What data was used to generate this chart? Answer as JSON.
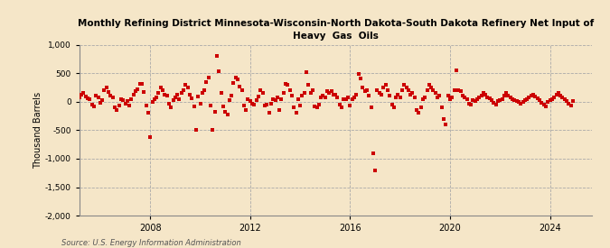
{
  "title": "Monthly Refining District Minnesota-Wisconsin-North Dakota-South Dakota Refinery Net Input of\nHeavy  Gas  Oils",
  "ylabel": "Thousand Barrels",
  "source": "Source: U.S. Energy Information Administration",
  "background_color": "#f5e6c8",
  "plot_bg_color": "#f5e6c8",
  "marker_color": "#cc0000",
  "marker": "s",
  "markersize": 2.5,
  "ylim": [
    -2000,
    1000
  ],
  "yticks": [
    -2000,
    -1500,
    -1000,
    -500,
    0,
    500,
    1000
  ],
  "ytick_labels": [
    "-2,000",
    "-1,500",
    "-1,000",
    "-500",
    "0",
    "500",
    "1,000"
  ],
  "grid_color": "#aaaaaa",
  "grid_style": "--",
  "data": [
    55,
    -30,
    80,
    120,
    150,
    90,
    60,
    40,
    -50,
    -80,
    110,
    70,
    -20,
    30,
    200,
    250,
    170,
    100,
    80,
    -100,
    -150,
    -60,
    40,
    20,
    -40,
    10,
    -60,
    50,
    130,
    190,
    220,
    310,
    310,
    170,
    -60,
    -200,
    -620,
    -10,
    50,
    80,
    160,
    250,
    200,
    130,
    100,
    -40,
    -100,
    30,
    80,
    120,
    40,
    160,
    200,
    300,
    250,
    120,
    60,
    -80,
    -490,
    90,
    -30,
    150,
    200,
    350,
    420,
    -70,
    -500,
    -180,
    810,
    540,
    150,
    -80,
    -170,
    -230,
    20,
    100,
    330,
    430,
    390,
    260,
    200,
    -60,
    -150,
    40,
    10,
    -40,
    -50,
    30,
    90,
    200,
    150,
    -70,
    -50,
    -200,
    -30,
    50,
    30,
    80,
    -150,
    40,
    150,
    320,
    300,
    200,
    100,
    -100,
    -200,
    50,
    -60,
    100,
    160,
    520,
    300,
    150,
    200,
    -80,
    -100,
    -50,
    70,
    110,
    80,
    180,
    150,
    180,
    130,
    120,
    80,
    -50,
    -100,
    40,
    50,
    80,
    -70,
    50,
    80,
    120,
    480,
    400,
    250,
    180,
    200,
    100,
    -100,
    -900,
    -1200,
    200,
    150,
    120,
    250,
    300,
    200,
    100,
    -50,
    -100,
    80,
    120,
    80,
    200,
    300,
    250,
    200,
    130,
    150,
    80,
    -150,
    -200,
    -100,
    50,
    80,
    200,
    300,
    250,
    200,
    150,
    80,
    100,
    -100,
    -300,
    -400,
    100,
    50,
    80,
    200,
    550,
    200,
    180,
    100,
    80,
    50,
    -30,
    -50,
    20,
    10,
    50,
    80,
    100,
    150,
    120,
    80,
    60,
    30,
    -20,
    -50,
    10,
    20,
    40,
    100,
    150,
    100,
    80,
    50,
    30,
    10,
    -10,
    -30,
    0,
    30,
    50,
    80,
    100,
    120,
    90,
    60,
    30,
    -20,
    -50,
    -80,
    -10,
    20,
    40,
    80,
    120,
    150,
    100,
    80,
    50,
    10,
    -30,
    -60,
    5
  ]
}
